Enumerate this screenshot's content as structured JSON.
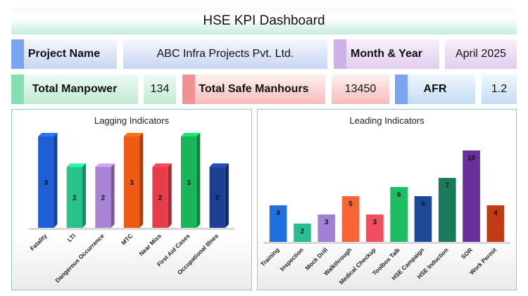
{
  "header": {
    "title": "HSE KPI Dashboard"
  },
  "info": {
    "project_label": "Project Name",
    "project_value": "ABC Infra Projects Pvt. Ltd.",
    "month_label": "Month & Year",
    "month_value": "April 2025"
  },
  "kpis": {
    "manpower_label": "Total Manpower",
    "manpower_value": "134",
    "safe_hours_label": "Total Safe Manhours",
    "safe_hours_value": "13450",
    "afr_label": "AFR",
    "afr_value": "1.2"
  },
  "colors": {
    "accent_blue": "#7aa5f0",
    "accent_purple": "#cdb2e6",
    "accent_green": "#86deb3",
    "accent_red": "#f19292",
    "panel_border": "#8fd0b6"
  },
  "chart_data": [
    {
      "type": "bar",
      "title": "Lagging Indicators",
      "categories": [
        "Fatality",
        "LTI",
        "Dangerous Occurrence",
        "MTC",
        "Near Miss",
        "First Aid Cases",
        "Occupational Illnes"
      ],
      "values": [
        3,
        2,
        2,
        3,
        2,
        3,
        2
      ],
      "colors": [
        "#1f5fd6",
        "#27c48a",
        "#a984d4",
        "#ee5a14",
        "#e83b4b",
        "#17b65a",
        "#1c3f94"
      ],
      "ylim": [
        0,
        3
      ],
      "grid": false,
      "legend": "none"
    },
    {
      "type": "bar",
      "title": "Leading Indicators",
      "categories": [
        "Training",
        "Inspection",
        "Mock Drill",
        "Walkthrough",
        "Medical Checkup",
        "Toolbox Talk",
        "HSE Campaign",
        "HSE Induction",
        "SOR",
        "Work Permit"
      ],
      "values": [
        4,
        2,
        3,
        5,
        3,
        6,
        5,
        7,
        10,
        4
      ],
      "colors": [
        "#1f6fe0",
        "#25c08f",
        "#a181d6",
        "#f96335",
        "#f04f5f",
        "#1fbd63",
        "#1c4a99",
        "#1a7a5c",
        "#6b2f9c",
        "#c23b12"
      ],
      "ylim": [
        0,
        10
      ],
      "grid": false,
      "legend": "none"
    }
  ]
}
